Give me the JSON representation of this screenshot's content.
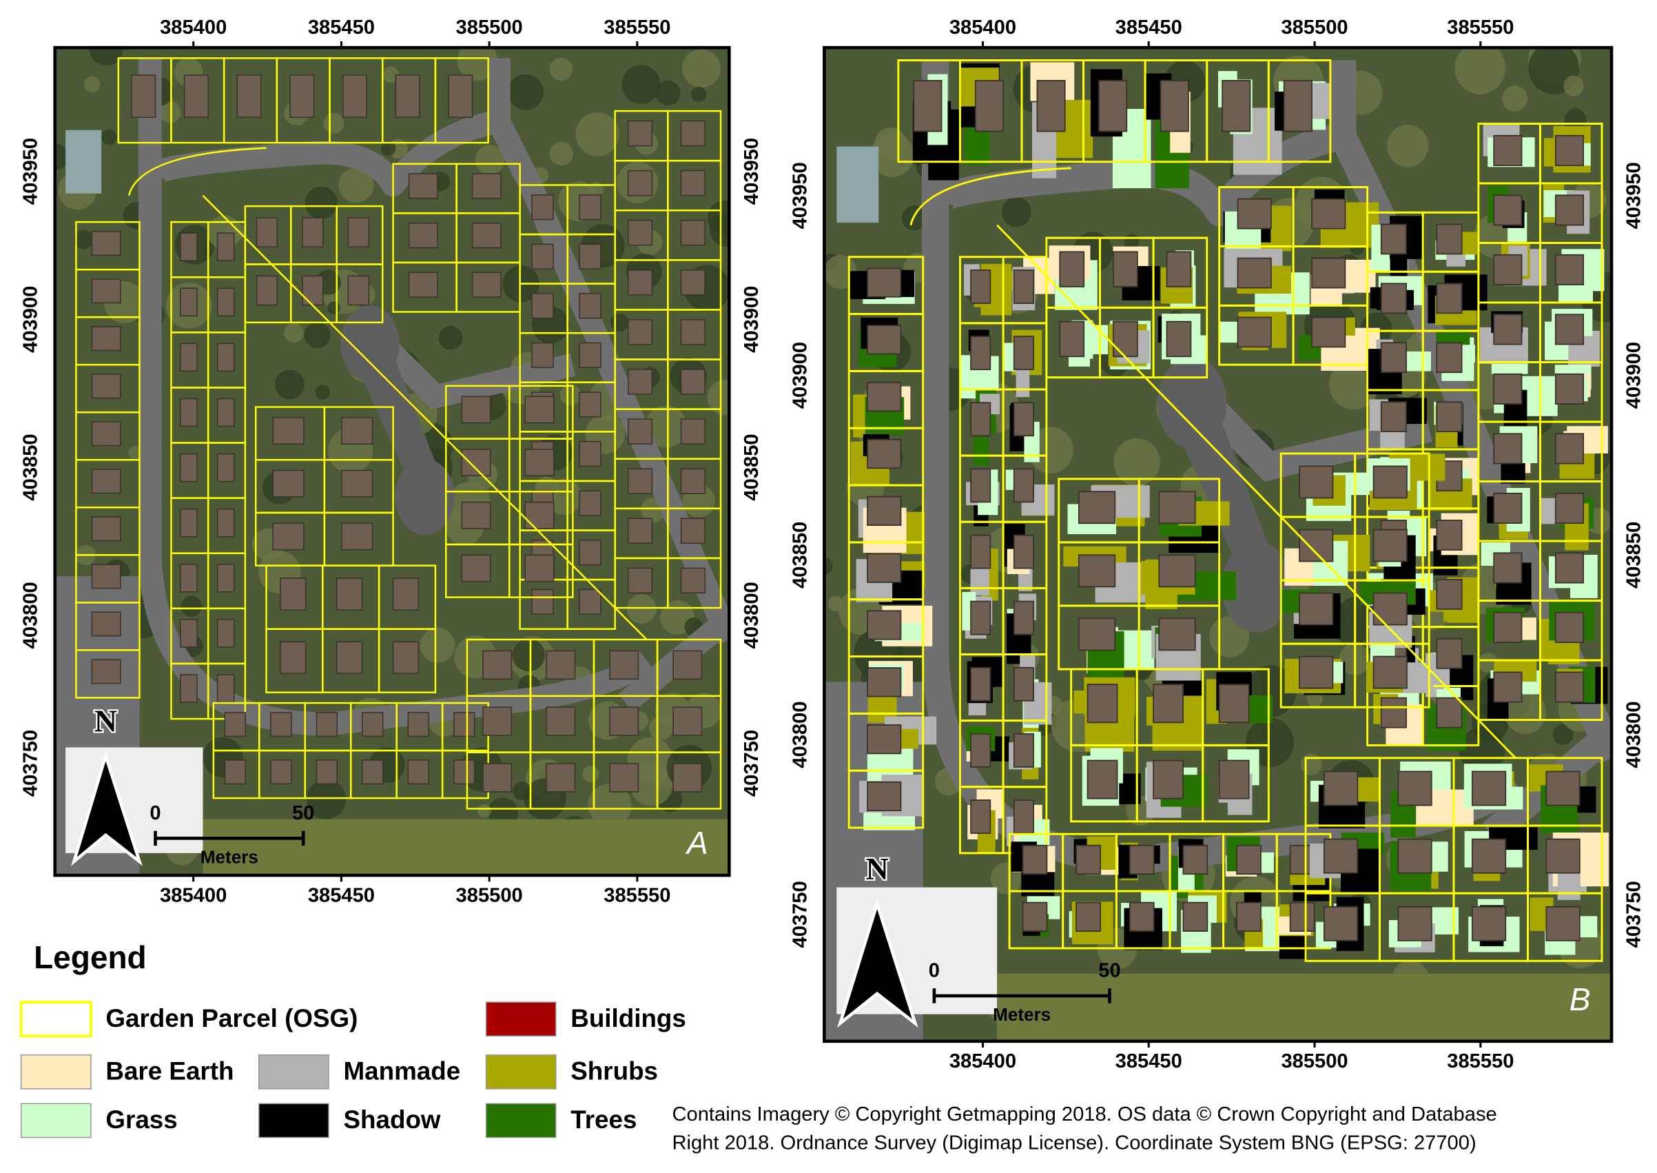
{
  "panels": [
    {
      "label": "A",
      "xticks": [
        "385400",
        "385450",
        "385500",
        "385550"
      ],
      "yticks": [
        "403950",
        "403900",
        "403850",
        "403800",
        "403750"
      ]
    },
    {
      "label": "B",
      "xticks": [
        "385400",
        "385450",
        "385500",
        "385550"
      ],
      "yticks": [
        "403950",
        "403900",
        "403850",
        "403800",
        "403750"
      ]
    }
  ],
  "north": "N",
  "scale": {
    "start": "0",
    "end": "50",
    "unit": "Meters"
  },
  "legend": {
    "title": "Legend",
    "items": [
      "Garden Parcel (OSG)",
      "Bare Earth",
      "Grass",
      "Manmade",
      "Shadow",
      "Buildings",
      "Shrubs",
      "Trees"
    ]
  },
  "credits": [
    "Contains Imagery © Copyright Getmapping  2018. OS data © Crown Copyright and Database",
    "Right 2018. Ordnance  Survey (Digimap License). Coordinate System BNG (EPSG: 27700)"
  ]
}
